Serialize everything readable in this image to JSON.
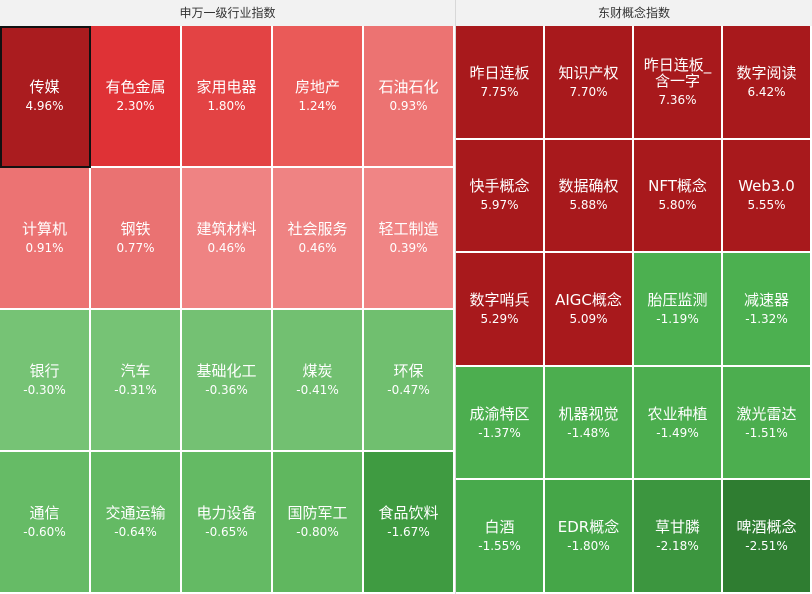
{
  "chart_data": [
    {
      "type": "heatmap",
      "title": "申万一级行业指数",
      "unit": "%",
      "columns": 5,
      "selected": "传媒",
      "items": [
        {
          "name": "传媒",
          "change": 4.96,
          "label": "4.96%",
          "color": "#aa1c1f"
        },
        {
          "name": "有色金属",
          "change": 2.3,
          "label": "2.30%",
          "color": "#df3236"
        },
        {
          "name": "家用电器",
          "change": 1.8,
          "label": "1.80%",
          "color": "#e34344"
        },
        {
          "name": "房地产",
          "change": 1.24,
          "label": "1.24%",
          "color": "#ea5a58"
        },
        {
          "name": "石油石化",
          "change": 0.93,
          "label": "0.93%",
          "color": "#ec7372"
        },
        {
          "name": "计算机",
          "change": 0.91,
          "label": "0.91%",
          "color": "#ec7373"
        },
        {
          "name": "钢铁",
          "change": 0.77,
          "label": "0.77%",
          "color": "#ea7272"
        },
        {
          "name": "建筑材料",
          "change": 0.46,
          "label": "0.46%",
          "color": "#ef8383"
        },
        {
          "name": "社会服务",
          "change": 0.46,
          "label": "0.46%",
          "color": "#ef8383"
        },
        {
          "name": "轻工制造",
          "change": 0.39,
          "label": "0.39%",
          "color": "#f08585"
        },
        {
          "name": "银行",
          "change": -0.3,
          "label": "-0.30%",
          "color": "#76c375"
        },
        {
          "name": "汽车",
          "change": -0.31,
          "label": "-0.31%",
          "color": "#76c375"
        },
        {
          "name": "基础化工",
          "change": -0.36,
          "label": "-0.36%",
          "color": "#74c173"
        },
        {
          "name": "煤炭",
          "change": -0.41,
          "label": "-0.41%",
          "color": "#72c071"
        },
        {
          "name": "环保",
          "change": -0.47,
          "label": "-0.47%",
          "color": "#70bf6f"
        },
        {
          "name": "通信",
          "change": -0.6,
          "label": "-0.60%",
          "color": "#66bb66"
        },
        {
          "name": "交通运输",
          "change": -0.64,
          "label": "-0.64%",
          "color": "#64ba64"
        },
        {
          "name": "电力设备",
          "change": -0.65,
          "label": "-0.65%",
          "color": "#64ba64"
        },
        {
          "name": "国防军工",
          "change": -0.8,
          "label": "-0.80%",
          "color": "#60b75f"
        },
        {
          "name": "食品饮料",
          "change": -1.67,
          "label": "-1.67%",
          "color": "#3f9b41"
        }
      ]
    },
    {
      "type": "heatmap",
      "title": "东财概念指数",
      "unit": "%",
      "columns": 4,
      "items": [
        {
          "name": "昨日连板",
          "change": 7.75,
          "label": "7.75%",
          "color": "#a8191c"
        },
        {
          "name": "知识产权",
          "change": 7.7,
          "label": "7.70%",
          "color": "#a8191c"
        },
        {
          "name": "昨日连板_含一字",
          "change": 7.36,
          "label": "7.36%",
          "color": "#a8191c"
        },
        {
          "name": "数字阅读",
          "change": 6.42,
          "label": "6.42%",
          "color": "#a8191c"
        },
        {
          "name": "快手概念",
          "change": 5.97,
          "label": "5.97%",
          "color": "#a8191c"
        },
        {
          "name": "数据确权",
          "change": 5.88,
          "label": "5.88%",
          "color": "#a8191c"
        },
        {
          "name": "NFT概念",
          "change": 5.8,
          "label": "5.80%",
          "color": "#a8191c"
        },
        {
          "name": "Web3.0",
          "change": 5.55,
          "label": "5.55%",
          "color": "#a8191c"
        },
        {
          "name": "数字哨兵",
          "change": 5.29,
          "label": "5.29%",
          "color": "#a8191c"
        },
        {
          "name": "AIGC概念",
          "change": 5.09,
          "label": "5.09%",
          "color": "#a8191c"
        },
        {
          "name": "胎压监测",
          "change": -1.19,
          "label": "-1.19%",
          "color": "#4cb050"
        },
        {
          "name": "减速器",
          "change": -1.32,
          "label": "-1.32%",
          "color": "#4cb050"
        },
        {
          "name": "成渝特区",
          "change": -1.37,
          "label": "-1.37%",
          "color": "#4cae4f"
        },
        {
          "name": "机器视觉",
          "change": -1.48,
          "label": "-1.48%",
          "color": "#4cae4f"
        },
        {
          "name": "农业种植",
          "change": -1.49,
          "label": "-1.49%",
          "color": "#4cae4f"
        },
        {
          "name": "激光雷达",
          "change": -1.51,
          "label": "-1.51%",
          "color": "#4cae4f"
        },
        {
          "name": "白酒",
          "change": -1.55,
          "label": "-1.55%",
          "color": "#48aa4c"
        },
        {
          "name": "EDR概念",
          "change": -1.8,
          "label": "-1.80%",
          "color": "#45a648"
        },
        {
          "name": "草甘膦",
          "change": -2.18,
          "label": "-2.18%",
          "color": "#3c963f"
        },
        {
          "name": "啤酒概念",
          "change": -2.51,
          "label": "-2.51%",
          "color": "#2f7d31"
        }
      ]
    }
  ]
}
